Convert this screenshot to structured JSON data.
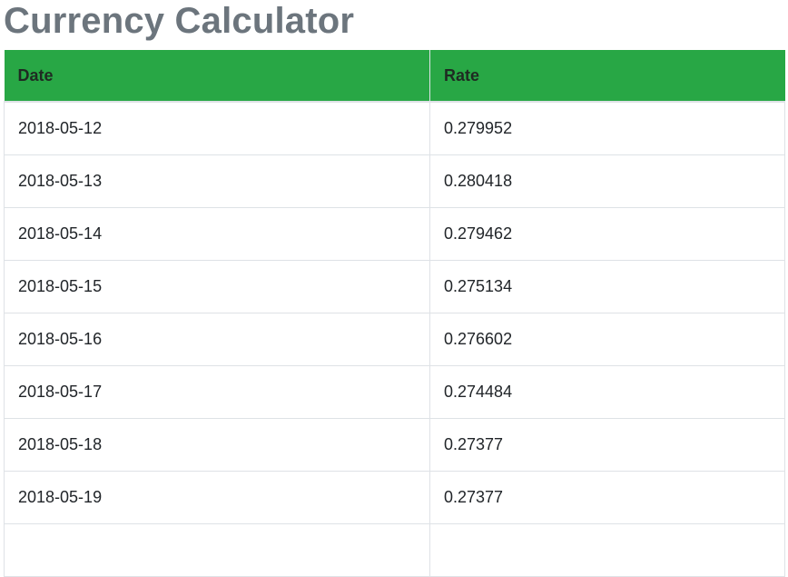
{
  "page": {
    "title": "Currency Calculator"
  },
  "table": {
    "headers": [
      "Date",
      "Rate"
    ],
    "rows": [
      {
        "date": "2018-05-12",
        "rate": "0.279952"
      },
      {
        "date": "2018-05-13",
        "rate": "0.280418"
      },
      {
        "date": "2018-05-14",
        "rate": "0.279462"
      },
      {
        "date": "2018-05-15",
        "rate": "0.275134"
      },
      {
        "date": "2018-05-16",
        "rate": "0.276602"
      },
      {
        "date": "2018-05-17",
        "rate": "0.274484"
      },
      {
        "date": "2018-05-18",
        "rate": "0.27377"
      },
      {
        "date": "2018-05-19",
        "rate": "0.27377"
      },
      {
        "date": "",
        "rate": ""
      }
    ]
  },
  "colors": {
    "header_bg": "#28a745",
    "title_color": "#6c757d",
    "border": "#dee2e6"
  }
}
